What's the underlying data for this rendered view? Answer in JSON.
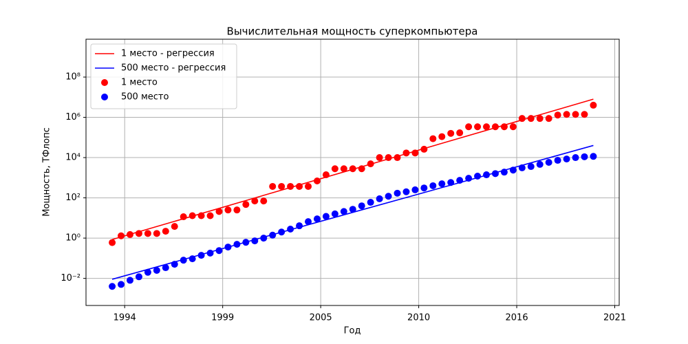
{
  "chart_data": {
    "type": "scatter",
    "title": "Вычислительная мощность суперкомпьютера",
    "x_label": "Год",
    "y_label": "Мощность, ТФлопс",
    "log_y": true,
    "grid": true,
    "legend": "upper left",
    "xlim": [
      1992.03,
      2021.95
    ],
    "ylim": [
      0.00045,
      7600000000
    ],
    "xticks": [
      {
        "value": 1994.2,
        "label": "1994"
      },
      {
        "value": 1999.7,
        "label": "1999"
      },
      {
        "value": 2005.2,
        "label": "2005"
      },
      {
        "value": 2010.7,
        "label": "2010"
      },
      {
        "value": 2016.2,
        "label": "2016"
      },
      {
        "value": 2021.7,
        "label": "2021"
      }
    ],
    "yticks": [
      {
        "value": 0.01,
        "label": "10⁻²"
      },
      {
        "value": 1,
        "label": "10⁰"
      },
      {
        "value": 100,
        "label": "10²"
      },
      {
        "value": 10000,
        "label": "10⁴"
      },
      {
        "value": 1000000,
        "label": "10⁶"
      },
      {
        "value": 100000000,
        "label": "10⁸"
      }
    ],
    "lines": [
      {
        "name": "1 место - регрессия",
        "color": "#ff0000",
        "x": [
          1993.5,
          2020.5
        ],
        "values": [
          0.85,
          8000000
        ]
      },
      {
        "name": "500 место - регрессия",
        "color": "#0000ff",
        "x": [
          1993.5,
          2020.5
        ],
        "values": [
          0.009,
          40000
        ]
      }
    ],
    "x": [
      1993.5,
      1994,
      1994.5,
      1995,
      1995.5,
      1996,
      1996.5,
      1997,
      1997.5,
      1998,
      1998.5,
      1999,
      1999.5,
      2000,
      2000.5,
      2001,
      2001.5,
      2002,
      2002.5,
      2003,
      2003.5,
      2004,
      2004.5,
      2005,
      2005.5,
      2006,
      2006.5,
      2007,
      2007.5,
      2008,
      2008.5,
      2009,
      2009.5,
      2010,
      2010.5,
      2011,
      2011.5,
      2012,
      2012.5,
      2013,
      2013.5,
      2014,
      2014.5,
      2015,
      2015.5,
      2016,
      2016.5,
      2017,
      2017.5,
      2018,
      2018.5,
      2019,
      2019.5,
      2020,
      2020.5
    ],
    "series": [
      {
        "name": "1 место",
        "color": "#ff0000",
        "values": [
          0.6,
          1.3,
          1.5,
          1.7,
          1.7,
          1.7,
          2.2,
          3.8,
          11.5,
          13,
          13,
          13,
          21,
          25,
          25,
          47,
          70,
          70,
          370,
          370,
          370,
          370,
          370,
          690,
          1400,
          2800,
          2800,
          2800,
          2800,
          4900,
          10000,
          10000,
          10000,
          17000,
          17000,
          26000,
          87000,
          110000,
          160000,
          170000,
          340000,
          340000,
          340000,
          340000,
          340000,
          340000,
          880000,
          880000,
          880000,
          880000,
          1300000,
          1400000,
          1400000,
          1400000,
          4000000
        ]
      },
      {
        "name": "500 место",
        "color": "#0000ff",
        "values": [
          0.004,
          0.005,
          0.008,
          0.012,
          0.02,
          0.025,
          0.034,
          0.05,
          0.08,
          0.094,
          0.14,
          0.18,
          0.24,
          0.36,
          0.49,
          0.62,
          0.73,
          1,
          1.4,
          2,
          2.8,
          4.1,
          6.6,
          9,
          12,
          16,
          21,
          27,
          40,
          60,
          90,
          120,
          170,
          200,
          250,
          310,
          400,
          500,
          580,
          740,
          940,
          1200,
          1400,
          1600,
          1900,
          2400,
          3100,
          3600,
          4600,
          5800,
          7300,
          8500,
          10000,
          11000,
          11500
        ]
      }
    ]
  }
}
